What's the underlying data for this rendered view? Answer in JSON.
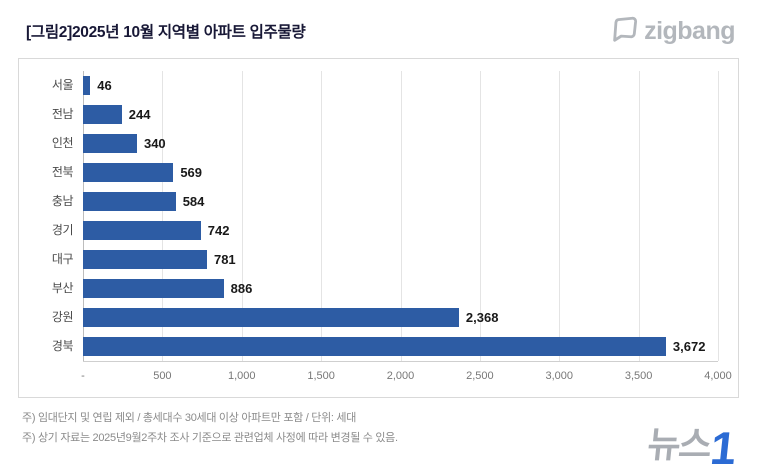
{
  "header": {
    "title": "[그림2]2025년 10월 지역별 아파트 입주물량",
    "logo_text": "zigbang"
  },
  "chart_data": {
    "type": "bar",
    "orientation": "horizontal",
    "title": "2025년 10월 지역별 아파트 입주물량",
    "categories": [
      "서울",
      "전남",
      "인천",
      "전북",
      "충남",
      "경기",
      "대구",
      "부산",
      "강원",
      "경북"
    ],
    "values": [
      46,
      244,
      340,
      569,
      584,
      742,
      781,
      886,
      2368,
      3672
    ],
    "value_labels": [
      "46",
      "244",
      "340",
      "569",
      "584",
      "742",
      "781",
      "886",
      "2,368",
      "3,672"
    ],
    "xlabel": "",
    "ylabel": "",
    "xlim": [
      0,
      4000
    ],
    "ticks": [
      {
        "label": "-",
        "value": 0
      },
      {
        "label": "500",
        "value": 500
      },
      {
        "label": "1,000",
        "value": 1000
      },
      {
        "label": "1,500",
        "value": 1500
      },
      {
        "label": "2,000",
        "value": 2000
      },
      {
        "label": "2,500",
        "value": 2500
      },
      {
        "label": "3,000",
        "value": 3000
      },
      {
        "label": "3,500",
        "value": 3500
      },
      {
        "label": "4,000",
        "value": 4000
      }
    ],
    "grid": true,
    "legend": false,
    "bar_color": "#2d5ca4"
  },
  "footer": {
    "note1": "주) 임대단지 및 연립 제외 / 총세대수 30세대 이상 아파트만 포함 / 단위: 세대",
    "note2": "주) 상기 자료는 2025년9월2주차 조사 기준으로 관련업체 사정에 따라 변경될 수 있음.",
    "watermark_text": "뉴스",
    "watermark_number": "1"
  }
}
